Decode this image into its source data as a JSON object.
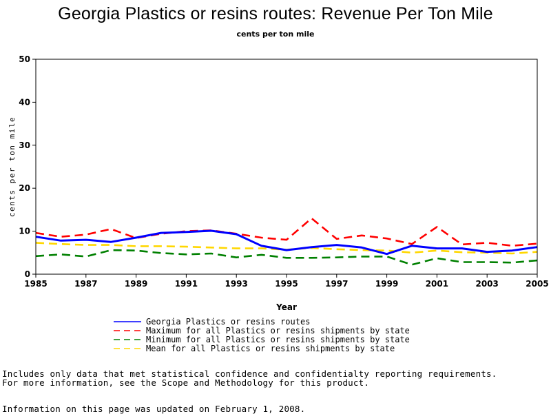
{
  "page": {
    "title": "Georgia Plastics or resins routes: Revenue Per Ton Mile",
    "subtitle": "cents per ton mile"
  },
  "notes": {
    "line1": "Includes only data that met statistical confidence and confidentialty reporting requirements.",
    "line2": "For more information, see the Scope and Methodology for this product.",
    "line3": "Information on this page was updated on February 1, 2008."
  },
  "chart_data": {
    "type": "line",
    "title": "Georgia Plastics or resins routes: Revenue Per Ton Mile",
    "subtitle": "cents per ton mile",
    "xlabel": "Year",
    "ylabel": "cents per ton mile",
    "xlim": [
      1985,
      2005
    ],
    "ylim": [
      0,
      50
    ],
    "x_ticks": [
      1985,
      1987,
      1989,
      1991,
      1993,
      1995,
      1997,
      1999,
      2001,
      2003,
      2005
    ],
    "y_ticks": [
      0,
      10,
      20,
      30,
      40,
      50
    ],
    "grid": false,
    "legend_position": "bottom",
    "x": [
      1985,
      1986,
      1987,
      1988,
      1989,
      1990,
      1991,
      1992,
      1993,
      1994,
      1995,
      1996,
      1997,
      1998,
      1999,
      2000,
      2001,
      2002,
      2003,
      2004,
      2005
    ],
    "series": [
      {
        "name": "Georgia Plastics or resins routes",
        "color": "#0000ff",
        "style": "solid",
        "values": [
          8.7,
          7.8,
          8.0,
          7.5,
          8.5,
          9.6,
          9.8,
          10.1,
          9.3,
          6.6,
          5.6,
          6.3,
          6.8,
          6.2,
          4.7,
          6.6,
          6.0,
          6.0,
          5.2,
          5.5,
          6.3
        ]
      },
      {
        "name": "Maximum for all Plastics or resins shipments by state",
        "color": "#ff0000",
        "style": "dashed",
        "values": [
          9.6,
          8.7,
          9.2,
          10.5,
          8.4,
          9.4,
          10.0,
          10.2,
          9.4,
          8.5,
          8.0,
          13.0,
          8.2,
          9.0,
          8.3,
          7.0,
          11.0,
          6.9,
          7.3,
          6.6,
          7.1
        ]
      },
      {
        "name": "Minimum for all Plastics or resins shipments by state",
        "color": "#008000",
        "style": "dashed",
        "values": [
          4.2,
          4.6,
          4.1,
          5.6,
          5.5,
          4.9,
          4.6,
          4.8,
          3.9,
          4.5,
          3.8,
          3.8,
          3.9,
          4.1,
          4.1,
          2.2,
          3.7,
          2.8,
          2.8,
          2.7,
          3.2
        ]
      },
      {
        "name": "Mean for all Plastics or resins shipments by state",
        "color": "#ffd700",
        "style": "dashed",
        "values": [
          7.3,
          7.0,
          6.8,
          6.8,
          6.5,
          6.5,
          6.4,
          6.2,
          6.0,
          6.0,
          5.7,
          6.1,
          5.8,
          5.6,
          5.5,
          5.0,
          5.5,
          5.1,
          5.0,
          4.8,
          5.2
        ]
      }
    ]
  }
}
